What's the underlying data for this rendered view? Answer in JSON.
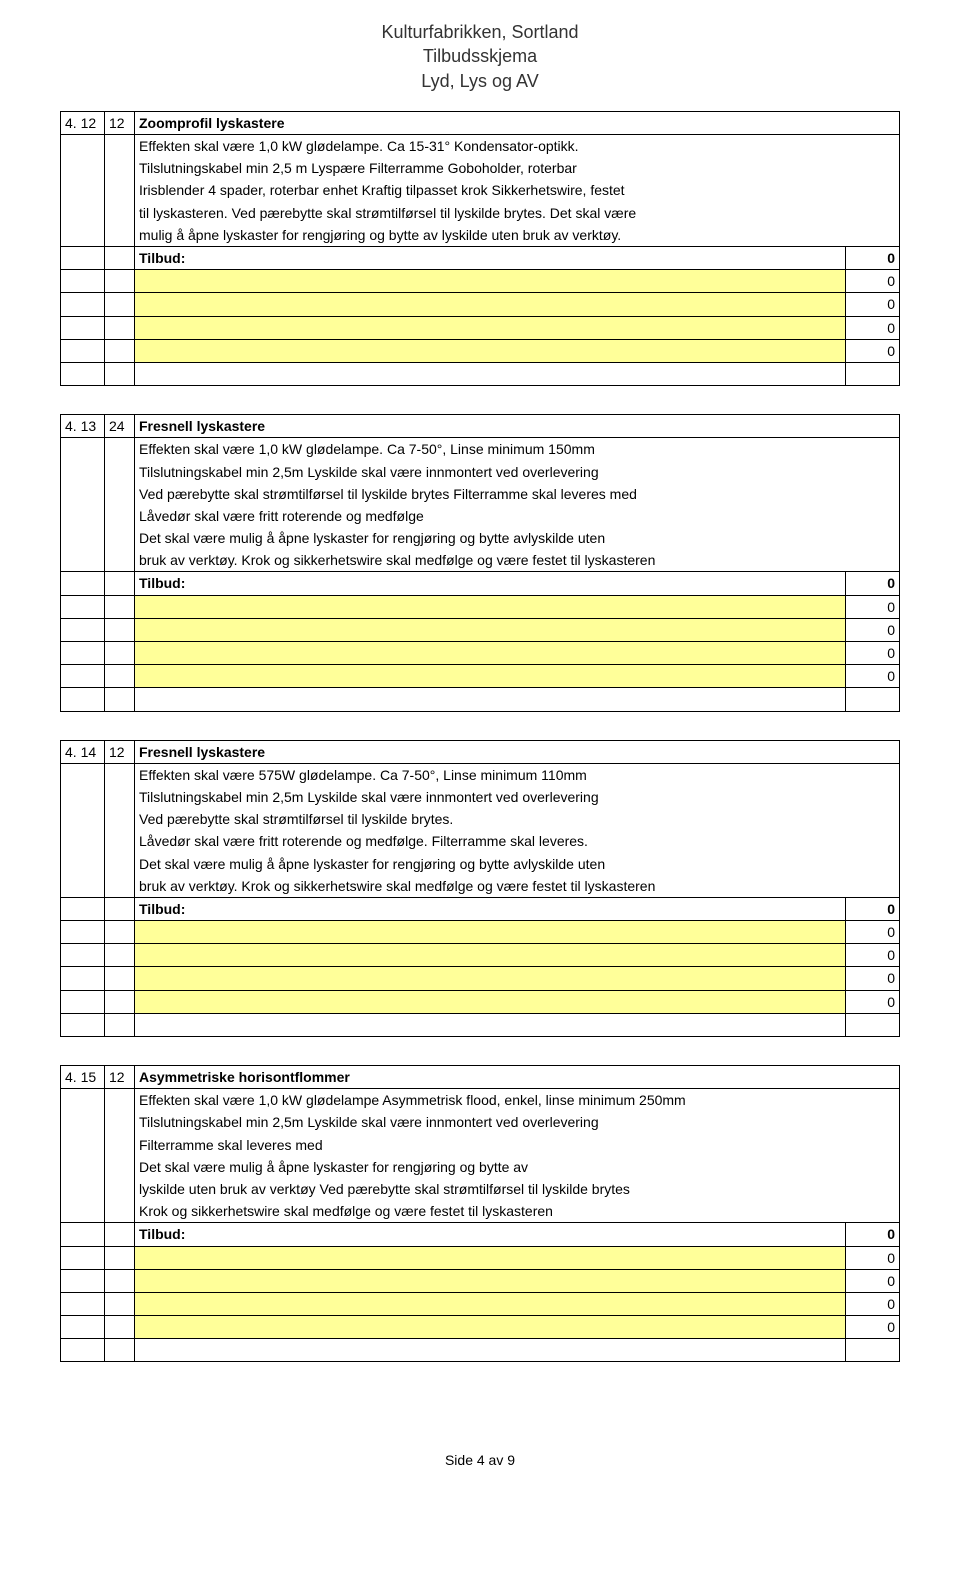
{
  "header": {
    "line1": "Kulturfabrikken, Sortland",
    "line2": "Tilbudsskjema",
    "line3": "Lyd, Lys og AV"
  },
  "sections": [
    {
      "num1": "4. 12",
      "num2": "12",
      "title": "Zoomprofil lyskastere",
      "lines": [
        "Effekten skal være 1,0 kW glødelampe. Ca 15-31° Kondensator-optikk.",
        "Tilslutningskabel min 2,5 m Lyspære Filterramme Goboholder, roterbar",
        "Irisblender 4 spader, roterbar enhet  Kraftig tilpasset krok  Sikkerhetswire, festet",
        "til lyskasteren. Ved pærebytte skal strømtilførsel til lyskilde brytes. Det skal være",
        "mulig å åpne lyskaster for rengjøring og bytte av lyskilde uten bruk av verktøy."
      ],
      "tilbud_label": "Tilbud:",
      "tilbud_value": "0",
      "blank_values": [
        "0",
        "0",
        "0",
        "0"
      ]
    },
    {
      "num1": "4. 13",
      "num2": "24",
      "title": "Fresnell lyskastere",
      "lines": [
        "Effekten skal være 1,0 kW glødelampe. Ca 7-50°, Linse minimum 150mm",
        "Tilslutningskabel min 2,5m Lyskilde skal være innmontert ved overlevering",
        "Ved pærebytte skal strømtilførsel til lyskilde brytes Filterramme skal leveres med",
        "Låvedør skal være fritt roterende og medfølge",
        "Det skal være mulig å åpne lyskaster for rengjøring og bytte avlyskilde uten",
        "bruk av verktøy. Krok og sikkerhetswire skal medfølge og være festet til lyskasteren"
      ],
      "tilbud_label": "Tilbud:",
      "tilbud_value": "0",
      "blank_values": [
        "0",
        "0",
        "0",
        "0"
      ]
    },
    {
      "num1": "4. 14",
      "num2": "12",
      "title": "Fresnell lyskastere",
      "lines": [
        "Effekten skal være 575W glødelampe. Ca 7-50°, Linse minimum 110mm",
        "Tilslutningskabel min 2,5m Lyskilde skal være innmontert ved overlevering",
        "Ved pærebytte skal strømtilførsel til lyskilde brytes.",
        "Låvedør skal være fritt roterende og medfølge. Filterramme skal leveres.",
        "Det skal være mulig å åpne lyskaster for rengjøring og bytte avlyskilde uten",
        "bruk av verktøy. Krok og sikkerhetswire skal medfølge og være festet til lyskasteren"
      ],
      "tilbud_label": "Tilbud:",
      "tilbud_value": "0",
      "blank_values": [
        "0",
        "0",
        "0",
        "0"
      ]
    },
    {
      "num1": "4. 15",
      "num2": "12",
      "title": "Asymmetriske horisontflommer",
      "lines": [
        "Effekten skal være 1,0 kW glødelampe Asymmetrisk flood, enkel, linse minimum 250mm",
        "Tilslutningskabel min 2,5m Lyskilde skal være innmontert ved overlevering",
        "Filterramme skal leveres med",
        "Det skal være mulig å åpne lyskaster for rengjøring og bytte av",
        "lyskilde uten bruk av verktøy Ved pærebytte skal strømtilførsel til lyskilde brytes",
        "Krok og sikkerhetswire skal medfølge og være festet til lyskasteren"
      ],
      "tilbud_label": "Tilbud:",
      "tilbud_value": "0",
      "blank_values": [
        "0",
        "0",
        "0",
        "0"
      ]
    }
  ],
  "footer": "Side 4 av 9",
  "colors": {
    "yellow": "#ffff99",
    "border": "#000000",
    "text": "#000000",
    "headerText": "#333333"
  }
}
